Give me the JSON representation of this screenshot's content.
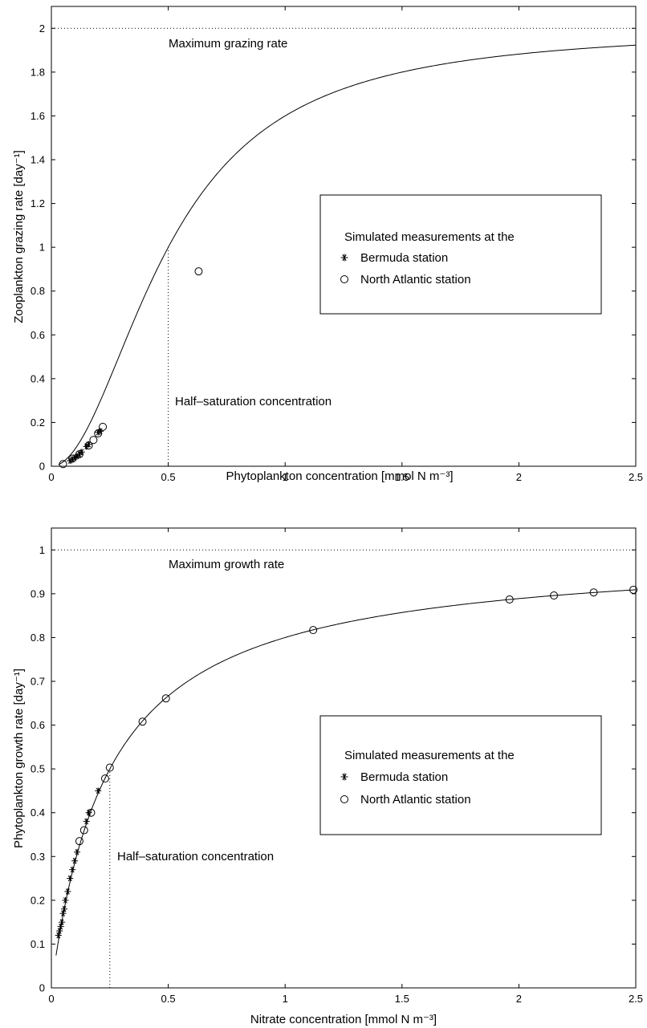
{
  "chart_data": [
    {
      "type": "scatter",
      "xlabel": "Phytoplankton concentration [mmol N m⁻³]",
      "ylabel": "Zooplankton grazing rate [day⁻¹]",
      "xlim": [
        0,
        2.5
      ],
      "ylim": [
        0,
        2.1
      ],
      "xticks": [
        "0",
        "0.5",
        "1",
        "1.5",
        "2",
        "2.5"
      ],
      "yticks": [
        "0",
        "0.2",
        "0.4",
        "0.6",
        "0.8",
        "1",
        "1.2",
        "1.4",
        "1.6",
        "1.8",
        "2"
      ],
      "grid": false,
      "max_line": {
        "value": 2,
        "label": "Maximum grazing rate"
      },
      "half_sat": {
        "x": 0.5,
        "label": "Half–saturation concentration"
      },
      "curve": {
        "model": "sigmoidal",
        "max": 2,
        "half_saturation": 0.5
      },
      "legend": {
        "title": "Simulated measurements at the",
        "entries": [
          "Bermuda station",
          "North Atlantic station"
        ],
        "position": "center-right"
      },
      "series": [
        {
          "name": "Bermuda station",
          "marker": "asterisk",
          "x": [
            0.08,
            0.09,
            0.1,
            0.11,
            0.12,
            0.13,
            0.15,
            0.16,
            0.2,
            0.21
          ],
          "y": [
            0.025,
            0.032,
            0.04,
            0.045,
            0.055,
            0.065,
            0.09,
            0.1,
            0.155,
            0.16
          ]
        },
        {
          "name": "North Atlantic station",
          "marker": "circle",
          "x": [
            0.05,
            0.09,
            0.12,
            0.16,
            0.18,
            0.2,
            0.22,
            0.63
          ],
          "y": [
            0.01,
            0.035,
            0.055,
            0.095,
            0.12,
            0.15,
            0.18,
            0.89
          ]
        }
      ]
    },
    {
      "type": "scatter",
      "xlabel": "Nitrate concentration [mmol N m⁻³]",
      "ylabel": "Phytoplankton growth rate [day⁻¹]",
      "xlim": [
        0,
        2.5
      ],
      "ylim": [
        0,
        1.05
      ],
      "xticks": [
        "0",
        "0.5",
        "1",
        "1.5",
        "2",
        "2.5"
      ],
      "yticks": [
        "0",
        "0.1",
        "0.2",
        "0.3",
        "0.4",
        "0.5",
        "0.6",
        "0.7",
        "0.8",
        "0.9",
        "1"
      ],
      "grid": false,
      "max_line": {
        "value": 1,
        "label": "Maximum growth rate"
      },
      "half_sat": {
        "x": 0.25,
        "label": "Half–saturation concentration"
      },
      "curve": {
        "model": "michaelis-menten",
        "max": 1,
        "half_saturation": 0.25
      },
      "legend": {
        "title": "Simulated measurements at the",
        "entries": [
          "Bermuda station",
          "North Atlantic station"
        ],
        "position": "center-right"
      },
      "series": [
        {
          "name": "Bermuda station",
          "marker": "asterisk",
          "x": [
            0.03,
            0.035,
            0.04,
            0.045,
            0.05,
            0.055,
            0.06,
            0.07,
            0.08,
            0.09,
            0.1,
            0.11,
            0.15,
            0.16,
            0.2
          ],
          "y": [
            0.12,
            0.13,
            0.14,
            0.15,
            0.17,
            0.18,
            0.2,
            0.22,
            0.25,
            0.27,
            0.29,
            0.31,
            0.38,
            0.4,
            0.45
          ]
        },
        {
          "name": "North Atlantic station",
          "marker": "circle",
          "x": [
            0.12,
            0.14,
            0.17,
            0.23,
            0.25,
            0.39,
            0.49,
            1.12,
            1.96,
            2.15,
            2.32,
            2.49
          ],
          "y": [
            0.335,
            0.36,
            0.4,
            0.478,
            0.503,
            0.608,
            0.661,
            0.817,
            0.887,
            0.896,
            0.903,
            0.909
          ]
        }
      ]
    }
  ]
}
